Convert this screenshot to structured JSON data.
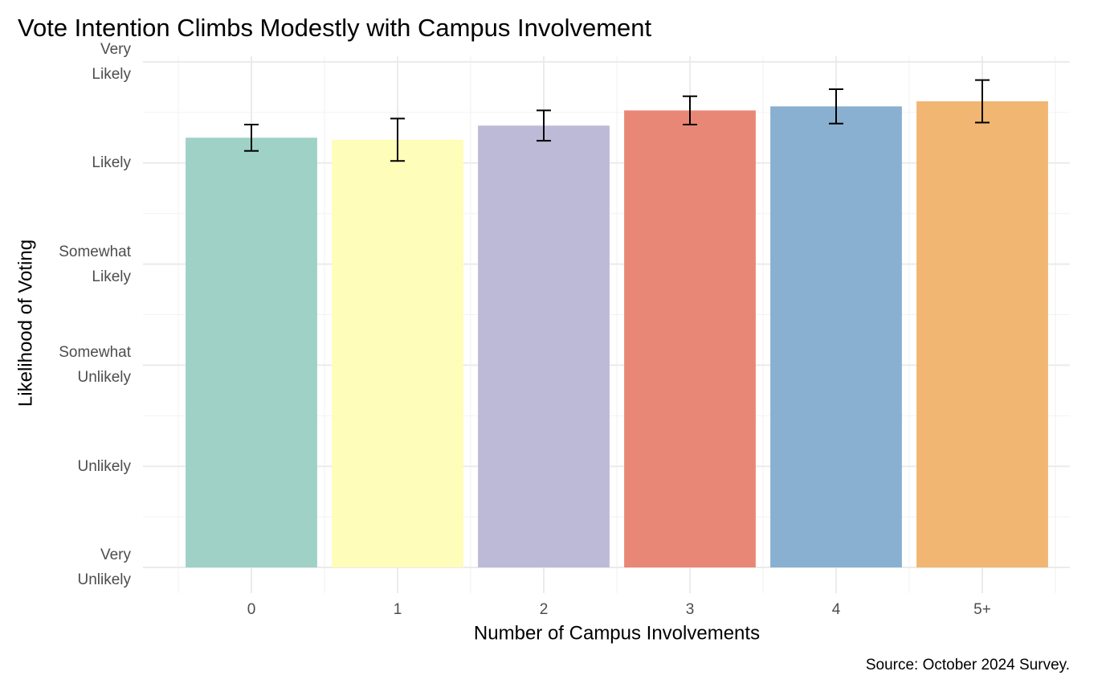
{
  "chart_data": {
    "type": "bar",
    "title": "Vote Intention Climbs Modestly with Campus Involvement",
    "x_label": "Number of Campus Involvements",
    "y_label": "Likelihood of Voting",
    "caption": "Source: October 2024 Survey.",
    "categories": [
      "0",
      "1",
      "2",
      "3",
      "4",
      "5+"
    ],
    "values": [
      5.25,
      5.23,
      5.37,
      5.52,
      5.56,
      5.61
    ],
    "errors": [
      0.13,
      0.21,
      0.15,
      0.14,
      0.17,
      0.21
    ],
    "colors": [
      "#9fd1c6",
      "#fefdb9",
      "#bdbad7",
      "#e98777",
      "#89b0d1",
      "#f1b672"
    ],
    "ylim": [
      1,
      6
    ],
    "yticks": [
      {
        "value": 1,
        "label": "Very\nUnlikely"
      },
      {
        "value": 2,
        "label": "Unlikely"
      },
      {
        "value": 3,
        "label": "Somewhat\nUnlikely"
      },
      {
        "value": 4,
        "label": "Somewhat\nLikely"
      },
      {
        "value": 5,
        "label": "Likely"
      },
      {
        "value": 6,
        "label": "Very\nLikely"
      }
    ],
    "grid": true
  }
}
